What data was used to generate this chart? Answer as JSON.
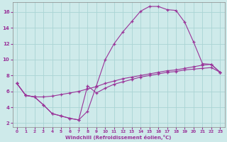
{
  "xlabel": "Windchill (Refroidissement éolien,°C)",
  "background_color": "#ceeaea",
  "grid_color": "#aad4d4",
  "line_color": "#993399",
  "xlim": [
    -0.5,
    23.5
  ],
  "ylim": [
    1.5,
    17.2
  ],
  "xticks": [
    0,
    1,
    2,
    3,
    4,
    5,
    6,
    7,
    8,
    9,
    10,
    11,
    12,
    13,
    14,
    15,
    16,
    17,
    18,
    19,
    20,
    21,
    22,
    23
  ],
  "yticks": [
    2,
    4,
    6,
    8,
    10,
    12,
    14,
    16
  ],
  "curve1_x": [
    0,
    1,
    2,
    3,
    4,
    5,
    6,
    7,
    8,
    9,
    10,
    11,
    12,
    13,
    14,
    15,
    16,
    17,
    18,
    19,
    20,
    21,
    22,
    23
  ],
  "curve1_y": [
    7.0,
    5.5,
    5.3,
    4.3,
    3.2,
    2.9,
    2.6,
    2.4,
    3.5,
    6.7,
    10.0,
    12.0,
    13.5,
    14.8,
    16.1,
    16.7,
    16.7,
    16.3,
    16.2,
    14.7,
    12.2,
    9.5,
    9.4,
    8.4
  ],
  "curve2_x": [
    0,
    1,
    2,
    3,
    4,
    5,
    6,
    7,
    8,
    9,
    10,
    11,
    12,
    13,
    14,
    15,
    16,
    17,
    18,
    19,
    20,
    21,
    22,
    23
  ],
  "curve2_y": [
    7.0,
    5.5,
    5.3,
    5.3,
    5.4,
    5.6,
    5.8,
    6.0,
    6.3,
    6.6,
    7.0,
    7.3,
    7.6,
    7.8,
    8.0,
    8.2,
    8.4,
    8.6,
    8.7,
    8.9,
    9.1,
    9.3,
    9.4,
    8.4
  ],
  "curve3_x": [
    0,
    1,
    2,
    3,
    4,
    5,
    6,
    7,
    8,
    9,
    10,
    11,
    12,
    13,
    14,
    15,
    16,
    17,
    18,
    19,
    20,
    21,
    22,
    23
  ],
  "curve3_y": [
    7.0,
    5.5,
    5.3,
    4.3,
    3.2,
    2.9,
    2.6,
    2.4,
    6.7,
    5.8,
    6.4,
    6.9,
    7.2,
    7.5,
    7.8,
    8.0,
    8.2,
    8.4,
    8.5,
    8.7,
    8.8,
    8.9,
    9.0,
    8.4
  ]
}
